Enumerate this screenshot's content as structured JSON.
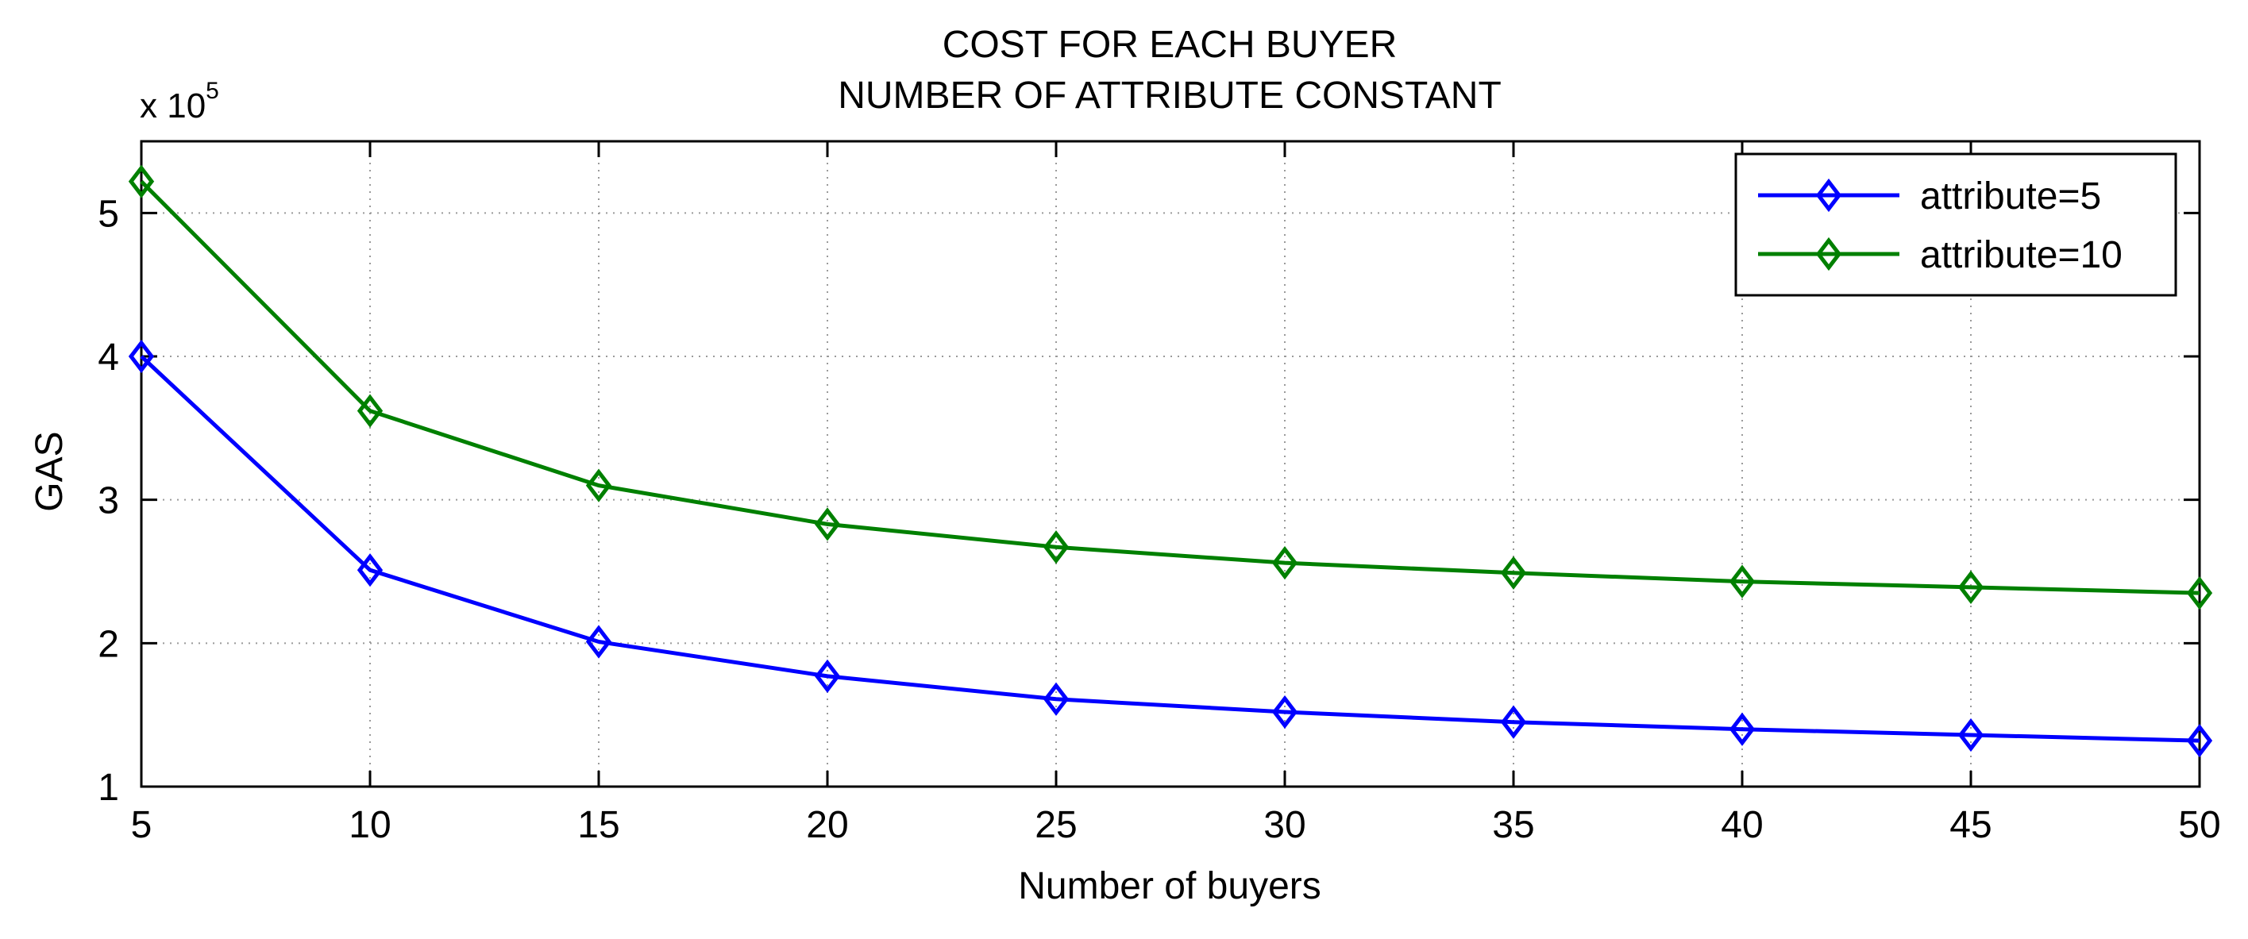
{
  "chart_data": {
    "type": "line",
    "title": [
      "COST FOR EACH BUYER",
      "NUMBER OF ATTRIBUTE CONSTANT"
    ],
    "xlabel": "Number of buyers",
    "ylabel": "GAS",
    "y_multiplier_label": "x 10",
    "y_multiplier_exponent": "5",
    "x": [
      5,
      10,
      15,
      20,
      25,
      30,
      35,
      40,
      45,
      50
    ],
    "xlim": [
      5,
      50
    ],
    "ylim": [
      1,
      5.5
    ],
    "x_ticks": [
      "5",
      "10",
      "15",
      "20",
      "25",
      "30",
      "35",
      "40",
      "45",
      "50"
    ],
    "y_ticks": [
      "1",
      "2",
      "3",
      "4",
      "5"
    ],
    "grid": true,
    "legend_position": "top-right",
    "marker": "diamond",
    "series": [
      {
        "name": "attribute=5",
        "color": "#0000ff",
        "values": [
          4.0,
          2.51,
          2.01,
          1.77,
          1.61,
          1.52,
          1.45,
          1.4,
          1.36,
          1.32
        ]
      },
      {
        "name": "attribute=10",
        "color": "#008000",
        "values": [
          5.22,
          3.62,
          3.1,
          2.83,
          2.67,
          2.56,
          2.49,
          2.43,
          2.39,
          2.35
        ]
      }
    ]
  }
}
